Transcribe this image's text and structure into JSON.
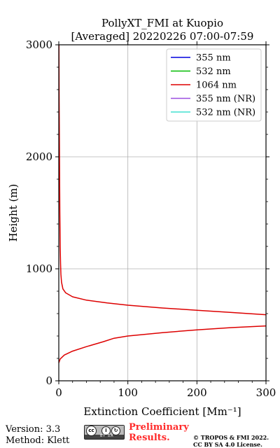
{
  "chart_data": {
    "type": "line",
    "title_line1": "PollyXT_FMI at Kuopio",
    "title_line2": "[Averaged] 20220226 07:00-07:59",
    "xlabel": "Extinction Coefficient [Mm⁻¹]",
    "ylabel": "Height (m)",
    "xlim": [
      0,
      300
    ],
    "ylim": [
      0,
      3000
    ],
    "xticks": [
      0,
      100,
      200,
      300
    ],
    "yticks": [
      0,
      1000,
      2000,
      3000
    ],
    "grid": true,
    "legend_position": "top-right",
    "legend": [
      {
        "name": "355 nm",
        "color": "#0000dd"
      },
      {
        "name": "532 nm",
        "color": "#00bb00"
      },
      {
        "name": "1064 nm",
        "color": "#dd0000"
      },
      {
        "name": "355 nm (NR)",
        "color": "#9b4de0"
      },
      {
        "name": "532 nm (NR)",
        "color": "#40e0d0"
      }
    ],
    "series": [
      {
        "name": "1064 nm",
        "color": "#dd0000",
        "points": [
          [
            300,
            490
          ],
          [
            250,
            475
          ],
          [
            200,
            455
          ],
          [
            150,
            430
          ],
          [
            100,
            400
          ],
          [
            80,
            380
          ],
          [
            65,
            350
          ],
          [
            40,
            305
          ],
          [
            20,
            265
          ],
          [
            8,
            230
          ],
          [
            2,
            195
          ],
          [
            0,
            160
          ],
          null,
          [
            300,
            590
          ],
          [
            250,
            610
          ],
          [
            200,
            630
          ],
          [
            150,
            650
          ],
          [
            100,
            675
          ],
          [
            70,
            695
          ],
          [
            40,
            720
          ],
          [
            20,
            750
          ],
          [
            10,
            785
          ],
          [
            6,
            820
          ],
          [
            4,
            880
          ],
          [
            3,
            950
          ],
          [
            2.5,
            1050
          ],
          [
            2,
            1200
          ],
          [
            1.5,
            1500
          ],
          [
            1,
            2000
          ],
          [
            0.5,
            2500
          ],
          [
            0.2,
            3000
          ]
        ]
      }
    ]
  },
  "footer": {
    "version": "Version: 3.3",
    "method": "Method: Klett",
    "preliminary_line1": "Preliminary",
    "preliminary_line2": "Results.",
    "copyright_line1": "© TROPOS & FMI 2022.",
    "copyright_line2": "CC BY SA 4.0 License.",
    "license_badge_text": "BY   SA",
    "preliminary_color": "#ff2a2a"
  }
}
